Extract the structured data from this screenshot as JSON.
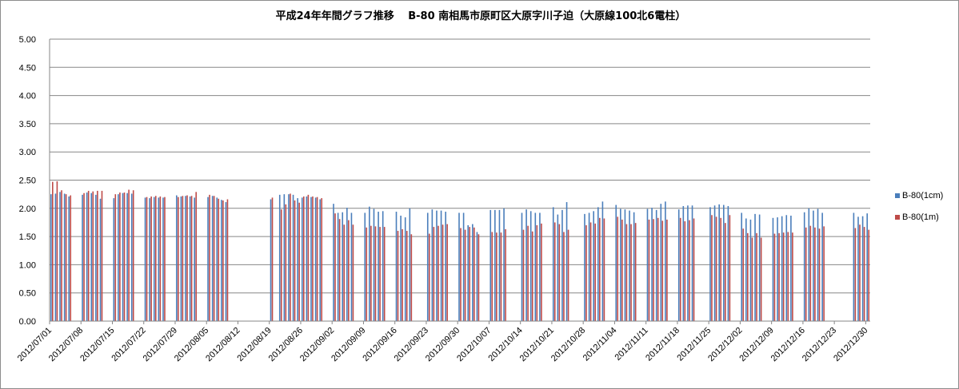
{
  "chart_data": {
    "type": "bar",
    "title": "平成24年年間グラフ推移　 B-80 南相馬市原町区大原字川子迫（大原線100北6電柱）",
    "xlabel": "",
    "ylabel": "",
    "ylim": [
      0,
      5
    ],
    "y_ticks": [
      "0.00",
      "0.50",
      "1.00",
      "1.50",
      "2.00",
      "2.50",
      "3.00",
      "3.50",
      "4.00",
      "4.50",
      "5.00"
    ],
    "x_start": "2012/07/01",
    "x_end": "2012/12/30",
    "x_ticks": [
      "2012/07/01",
      "2012/07/08",
      "2012/07/15",
      "2012/07/22",
      "2012/07/29",
      "2012/08/05",
      "2012/08/12",
      "2012/08/19",
      "2012/08/26",
      "2012/09/02",
      "2012/09/09",
      "2012/09/16",
      "2012/09/23",
      "2012/09/30",
      "2012/10/07",
      "2012/10/14",
      "2012/10/21",
      "2012/10/28",
      "2012/11/04",
      "2012/11/11",
      "2012/11/18",
      "2012/11/25",
      "2012/12/02",
      "2012/12/09",
      "2012/12/16",
      "2012/12/23",
      "2012/12/30"
    ],
    "grid": true,
    "legend_position": "right",
    "series": [
      {
        "name": "B-80(1cm)",
        "color": "#4a7ebb",
        "values": [
          [
            2.25,
            2.26,
            2.29,
            2.26,
            2.21,
            null,
            null
          ],
          [
            2.24,
            2.28,
            2.27,
            2.24,
            2.17,
            null,
            null
          ],
          [
            2.18,
            2.25,
            2.27,
            2.27,
            2.26,
            null,
            null
          ],
          [
            2.19,
            2.18,
            2.2,
            2.19,
            2.19,
            null,
            null
          ],
          [
            2.23,
            2.21,
            2.22,
            2.21,
            2.19,
            null,
            null
          ],
          [
            2.2,
            2.22,
            2.19,
            2.15,
            2.11,
            null,
            null
          ],
          [
            null,
            null,
            null,
            null,
            null,
            null,
            null
          ],
          [
            2.16,
            null,
            2.24,
            2.25,
            2.25,
            2.24,
            2.18
          ],
          [
            2.19,
            2.21,
            2.2,
            2.19,
            2.16,
            null,
            null
          ],
          [
            2.08,
            1.92,
            1.93,
            2.01,
            1.92,
            null,
            null
          ],
          [
            1.92,
            2.03,
            1.99,
            1.94,
            1.95,
            null,
            null
          ],
          [
            1.94,
            1.87,
            1.84,
            2.0,
            null,
            null,
            null
          ],
          [
            1.92,
            1.98,
            1.96,
            1.96,
            1.94,
            null,
            null
          ],
          [
            1.92,
            1.92,
            1.7,
            1.72,
            1.58,
            null,
            null
          ],
          [
            1.97,
            1.97,
            1.97,
            2.0,
            null,
            null,
            null
          ],
          [
            1.92,
            1.98,
            1.95,
            1.92,
            1.92,
            null,
            null
          ],
          [
            2.02,
            1.89,
            1.97,
            2.11,
            null,
            null,
            null
          ],
          [
            1.9,
            1.92,
            1.95,
            2.02,
            2.12,
            null,
            null
          ],
          [
            2.06,
            1.99,
            1.98,
            1.96,
            1.93,
            null,
            null
          ],
          [
            1.99,
            2.01,
            1.97,
            2.08,
            2.12,
            null,
            null
          ],
          [
            1.98,
            2.04,
            2.05,
            2.05,
            null,
            null,
            null
          ],
          [
            2.02,
            2.05,
            2.07,
            2.06,
            2.04,
            null,
            null
          ],
          [
            1.92,
            1.82,
            1.8,
            1.9,
            1.89,
            null,
            null
          ],
          [
            1.83,
            1.84,
            1.86,
            1.88,
            1.87,
            null,
            null
          ],
          [
            1.93,
            2.0,
            1.96,
            1.99,
            1.92,
            null,
            null
          ],
          [
            null,
            null,
            null,
            null,
            1.92,
            1.85,
            1.86
          ],
          [
            1.91
          ]
        ]
      },
      {
        "name": "B-80(1m)",
        "color": "#be4b48",
        "values": [
          [
            2.47,
            2.48,
            2.32,
            2.25,
            2.23,
            null,
            null
          ],
          [
            2.27,
            2.31,
            2.3,
            2.31,
            2.31,
            null,
            null
          ],
          [
            2.25,
            2.28,
            2.28,
            2.33,
            2.32,
            null,
            null
          ],
          [
            2.2,
            2.21,
            2.22,
            2.21,
            2.2,
            null,
            null
          ],
          [
            2.2,
            2.22,
            2.23,
            2.22,
            2.29,
            null,
            null
          ],
          [
            2.24,
            2.22,
            2.17,
            2.14,
            2.16,
            null,
            null
          ],
          [
            null,
            null,
            null,
            null,
            null,
            null,
            null
          ],
          [
            2.19,
            null,
            1.98,
            2.07,
            2.26,
            2.14,
            2.1
          ],
          [
            2.21,
            2.24,
            2.21,
            2.2,
            2.18,
            null,
            null
          ],
          [
            1.91,
            1.81,
            1.71,
            1.79,
            1.71,
            null,
            null
          ],
          [
            1.66,
            1.69,
            1.68,
            1.67,
            1.67,
            null,
            null
          ],
          [
            1.6,
            1.63,
            1.6,
            1.54,
            null,
            null,
            null
          ],
          [
            1.55,
            1.67,
            1.69,
            1.71,
            1.72,
            null,
            null
          ],
          [
            1.65,
            1.62,
            1.67,
            1.66,
            1.54,
            null,
            null
          ],
          [
            1.58,
            1.57,
            1.57,
            1.63,
            null,
            null,
            null
          ],
          [
            1.62,
            1.69,
            1.59,
            1.7,
            1.73,
            null,
            null
          ],
          [
            1.75,
            1.72,
            1.58,
            1.62,
            null,
            null,
            null
          ],
          [
            1.7,
            1.75,
            1.73,
            1.83,
            1.82,
            null,
            null
          ],
          [
            1.85,
            1.8,
            1.72,
            1.72,
            1.74,
            null,
            null
          ],
          [
            1.8,
            1.81,
            1.83,
            1.78,
            1.8,
            null,
            null
          ],
          [
            1.83,
            1.77,
            1.79,
            1.82,
            null,
            null,
            null
          ],
          [
            1.88,
            1.85,
            1.83,
            1.74,
            1.88,
            null,
            null
          ],
          [
            1.64,
            1.56,
            1.48,
            1.56,
            1.48,
            null,
            null
          ],
          [
            1.55,
            1.56,
            1.57,
            1.58,
            1.57,
            null,
            null
          ],
          [
            1.66,
            1.69,
            1.66,
            1.64,
            1.68,
            null,
            null
          ],
          [
            null,
            null,
            null,
            null,
            1.65,
            1.71,
            1.67
          ],
          [
            1.62
          ]
        ]
      }
    ]
  }
}
